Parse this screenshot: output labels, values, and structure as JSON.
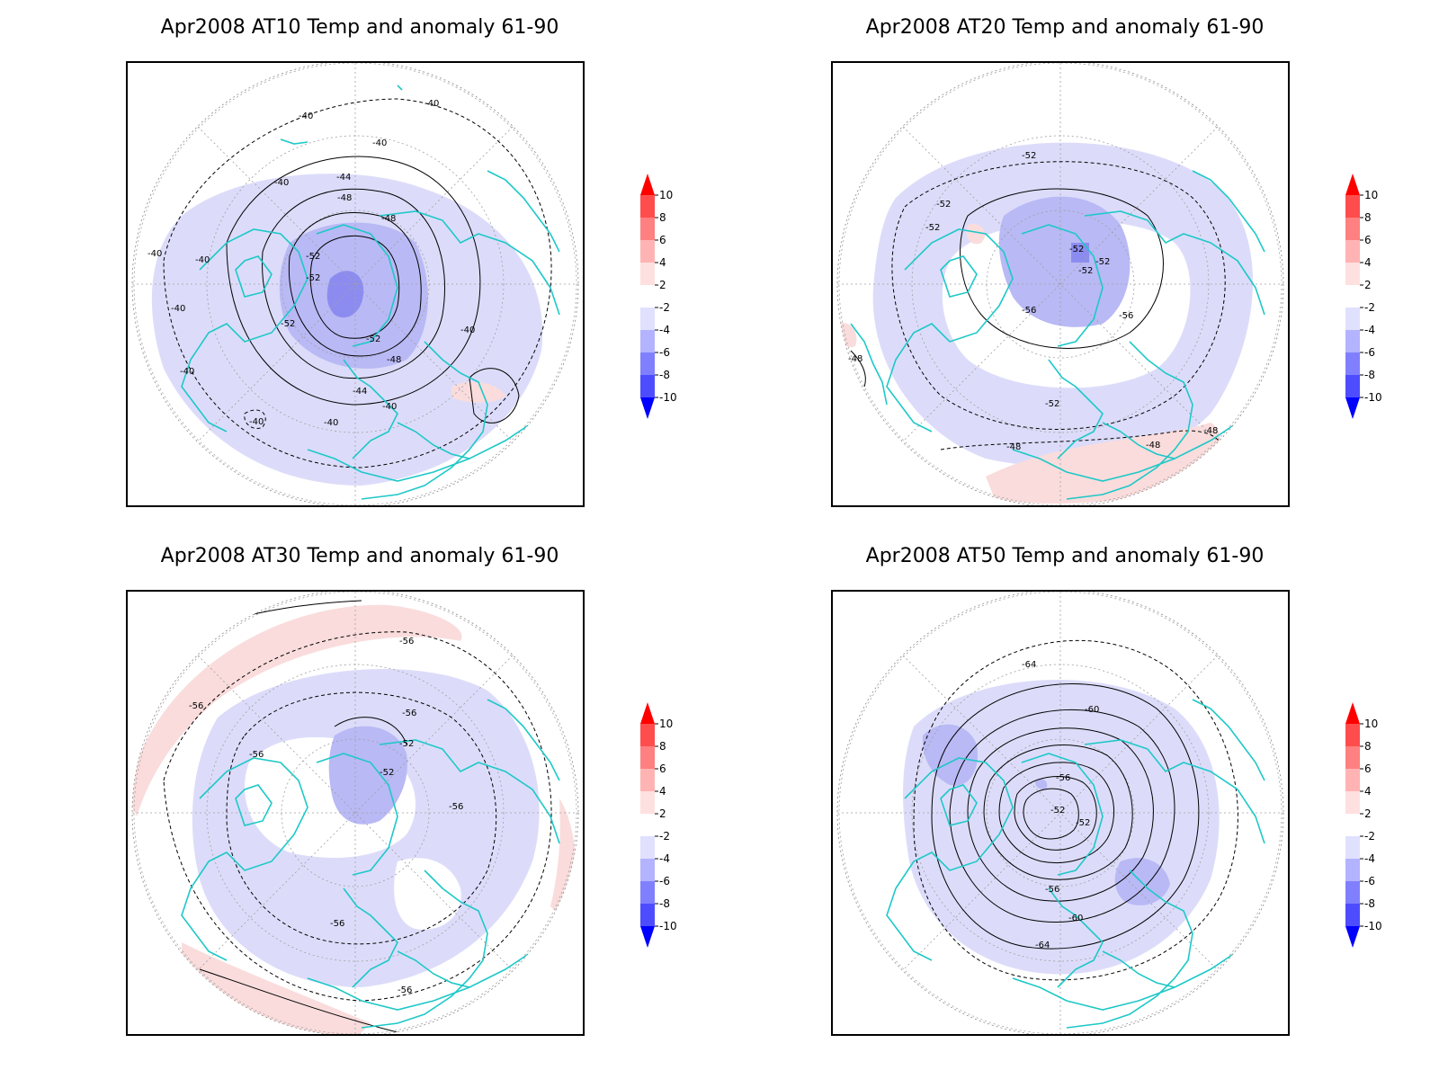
{
  "panels": [
    {
      "title": "Apr2008 AT10 Temp and anomaly 61-90",
      "contour_labels": [
        "-40",
        "-40",
        "-40",
        "-40",
        "-40",
        "-40",
        "-40",
        "-40",
        "-40",
        "-40",
        "-40",
        "-40",
        "-44",
        "-44",
        "-48",
        "-48",
        "-48",
        "-52",
        "-52",
        "-52",
        "-52"
      ]
    },
    {
      "title": "Apr2008 AT20 Temp and anomaly 61-90",
      "contour_labels": [
        "-52",
        "-52",
        "-52",
        "-52",
        "-52",
        "-52",
        "-56",
        "-56",
        "-52",
        "-48",
        "-48",
        "-48",
        "-48"
      ]
    },
    {
      "title": "Apr2008 AT30 Temp and anomaly 61-90",
      "contour_labels": [
        "-56",
        "-56",
        "-56",
        "-56",
        "-52",
        "-52",
        "-56",
        "-56",
        "-56"
      ]
    },
    {
      "title": "Apr2008 AT50 Temp and anomaly 61-90",
      "contour_labels": [
        "-64",
        "-60",
        "-56",
        "-52",
        "-52",
        "-56",
        "-60",
        "-64"
      ]
    }
  ],
  "colorbar": {
    "labels": [
      "10",
      "8",
      "6",
      "4",
      "2",
      "-2",
      "-4",
      "-6",
      "-8",
      "-10"
    ],
    "colors": [
      "#ff0000",
      "#ff4d4d",
      "#ff8080",
      "#ffb3b3",
      "#ffe0e0",
      "#ffffff",
      "#e0e0ff",
      "#b3b3ff",
      "#8080ff",
      "#4d4dff",
      "#0000ff"
    ]
  },
  "colors": {
    "coastline": "#1ec8c8",
    "anomaly_neg_light": "#dcdcfa",
    "anomaly_neg_mid": "#b9b9f5",
    "anomaly_neg_strong": "#8c8cf0",
    "anomaly_pos_light": "#fadcdc"
  }
}
